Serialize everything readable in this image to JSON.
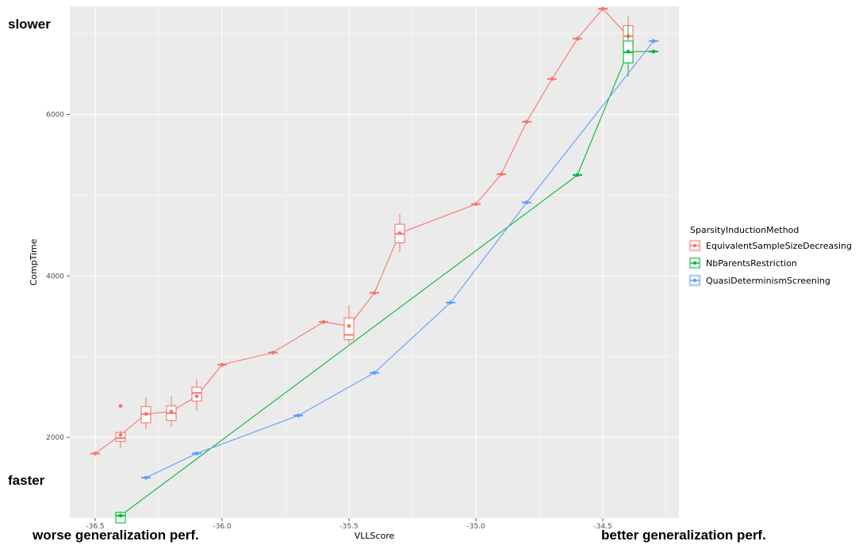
{
  "annotations": {
    "top_left": "slower",
    "bottom_left": "faster",
    "bottom_left_x": "worse generalization perf.",
    "bottom_right_x": "better generalization perf."
  },
  "chart_data": {
    "type": "line",
    "title": "",
    "xlabel": "VLLScore",
    "ylabel": "CompTime",
    "xlim": [
      -36.6,
      -34.2
    ],
    "ylim": [
      1000,
      7340
    ],
    "x_ticks": [
      -36.5,
      -36.0,
      -35.5,
      -35.0,
      -34.5
    ],
    "x_tick_labels": [
      "-36.5",
      "-36.0",
      "-35.5",
      "-35.0",
      "-34.5"
    ],
    "y_ticks": [
      2000,
      4000,
      6000
    ],
    "y_tick_labels": [
      "2000",
      "4000",
      "6000"
    ],
    "grid": true,
    "background": "#ebebeb",
    "legend": {
      "title": "SparsityInductionMethod",
      "position": "right",
      "entries": [
        "EquivalentSampleSizeDecreasing",
        "NbParentsRestriction",
        "QuasiDeterminismScreening"
      ]
    },
    "series": [
      {
        "name": "EquivalentSampleSizeDecreasing",
        "color": "#f8766d",
        "points": [
          {
            "x": -36.5,
            "y": 1800
          },
          {
            "x": -36.4,
            "y": 2030
          },
          {
            "x": -36.3,
            "y": 2290
          },
          {
            "x": -36.2,
            "y": 2320
          },
          {
            "x": -36.1,
            "y": 2510
          },
          {
            "x": -36.0,
            "y": 2900
          },
          {
            "x": -35.8,
            "y": 3050
          },
          {
            "x": -35.6,
            "y": 3430
          },
          {
            "x": -35.5,
            "y": 3380
          },
          {
            "x": -35.4,
            "y": 3790
          },
          {
            "x": -35.3,
            "y": 4530
          },
          {
            "x": -35.0,
            "y": 4890
          },
          {
            "x": -34.9,
            "y": 5260
          },
          {
            "x": -34.8,
            "y": 5910
          },
          {
            "x": -34.7,
            "y": 6440
          },
          {
            "x": -34.6,
            "y": 6940
          },
          {
            "x": -34.5,
            "y": 7310
          },
          {
            "x": -34.4,
            "y": 6970
          }
        ],
        "boxes": [
          {
            "x": -36.4,
            "q1": 1950,
            "median": 1990,
            "q3": 2060,
            "min": 1870,
            "max": 2080,
            "outliers": [
              2390
            ]
          },
          {
            "x": -36.3,
            "q1": 2180,
            "median": 2290,
            "q3": 2380,
            "min": 2100,
            "max": 2500
          },
          {
            "x": -36.2,
            "q1": 2210,
            "median": 2300,
            "q3": 2390,
            "min": 2130,
            "max": 2510
          },
          {
            "x": -36.1,
            "q1": 2450,
            "median": 2550,
            "q3": 2620,
            "min": 2330,
            "max": 2720
          },
          {
            "x": -35.5,
            "q1": 3210,
            "median": 3270,
            "q3": 3480,
            "min": 3160,
            "max": 3640
          },
          {
            "x": -35.3,
            "q1": 4410,
            "median": 4520,
            "q3": 4640,
            "min": 4290,
            "max": 4770
          },
          {
            "x": -34.4,
            "q1": 6840,
            "median": 6970,
            "q3": 7100,
            "min": 6720,
            "max": 7220
          }
        ]
      },
      {
        "name": "NbParentsRestriction",
        "color": "#00ba38",
        "points": [
          {
            "x": -36.4,
            "y": 1030
          },
          {
            "x": -34.6,
            "y": 5250
          },
          {
            "x": -34.4,
            "y": 6780
          },
          {
            "x": -34.3,
            "y": 6780
          }
        ],
        "boxes": [
          {
            "x": -36.4,
            "q1": 940,
            "median": 1030,
            "q3": 1070,
            "min": 940,
            "max": 1080
          },
          {
            "x": -34.4,
            "q1": 6640,
            "median": 6770,
            "q3": 6910,
            "min": 6470,
            "max": 7110
          }
        ]
      },
      {
        "name": "QuasiDeterminismScreening",
        "color": "#619cff",
        "points": [
          {
            "x": -36.3,
            "y": 1500
          },
          {
            "x": -36.1,
            "y": 1800
          },
          {
            "x": -35.7,
            "y": 2270
          },
          {
            "x": -35.4,
            "y": 2800
          },
          {
            "x": -35.1,
            "y": 3670
          },
          {
            "x": -34.8,
            "y": 4910
          },
          {
            "x": -34.3,
            "y": 6910
          }
        ]
      }
    ]
  }
}
